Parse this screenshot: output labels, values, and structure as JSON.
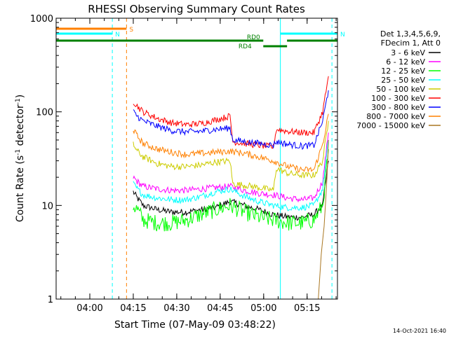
{
  "chart_data": {
    "type": "line",
    "title": "RHESSI Observing Summary Count Rates",
    "xlabel": "Start Time (07-May-09 03:48:22)",
    "ylabel": "Count Rate (s",
    "ylabel_sup": "-1",
    "ylabel_tail": " detector",
    "ylabel_close": ")",
    "yscale": "log",
    "ylim": [
      1,
      1000
    ],
    "xlim": [
      "03:48:22",
      "05:25:30"
    ],
    "x_unit": "minutes after 03:48:22",
    "xlim_minutes": [
      0,
      97.1
    ],
    "yticks": [
      {
        "value": 1,
        "label": "1"
      },
      {
        "value": 10,
        "label": "10"
      },
      {
        "value": 100,
        "label": "100"
      },
      {
        "value": 1000,
        "label": "1000"
      }
    ],
    "xticks": [
      {
        "minutes": 11.63,
        "label": "04:00"
      },
      {
        "minutes": 26.63,
        "label": "04:15"
      },
      {
        "minutes": 41.63,
        "label": "04:30"
      },
      {
        "minutes": 56.63,
        "label": "04:45"
      },
      {
        "minutes": 71.63,
        "label": "05:00"
      },
      {
        "minutes": 86.63,
        "label": "05:15"
      }
    ],
    "legend": {
      "position": "right",
      "header": [
        "Det 1,3,4,5,6,9,",
        "FDecim 1, Att 0"
      ]
    },
    "series": [
      {
        "name": "3 - 6 keV",
        "color": "#000000",
        "values": [
          [
            26.6,
            14
          ],
          [
            28,
            12
          ],
          [
            30,
            10
          ],
          [
            35,
            9
          ],
          [
            40,
            8.5
          ],
          [
            45,
            8.5
          ],
          [
            50,
            9
          ],
          [
            55,
            9.5
          ],
          [
            60,
            11
          ],
          [
            65,
            10
          ],
          [
            70,
            9
          ],
          [
            75,
            8
          ],
          [
            80,
            7.5
          ],
          [
            85,
            7.5
          ],
          [
            89,
            8
          ],
          [
            92,
            10
          ],
          [
            94,
            30
          ]
        ]
      },
      {
        "name": "6 - 12 keV",
        "color": "#ff00ff",
        "values": [
          [
            26.6,
            20
          ],
          [
            28,
            18
          ],
          [
            30,
            16
          ],
          [
            35,
            15
          ],
          [
            40,
            14.5
          ],
          [
            45,
            14.5
          ],
          [
            50,
            15
          ],
          [
            55,
            15.5
          ],
          [
            60,
            16
          ],
          [
            65,
            14.5
          ],
          [
            70,
            13.5
          ],
          [
            75,
            13
          ],
          [
            80,
            12
          ],
          [
            85,
            11.5
          ],
          [
            89,
            12
          ],
          [
            92,
            18
          ],
          [
            94,
            60
          ]
        ]
      },
      {
        "name": "12 - 25 keV",
        "color": "#00ff00",
        "values": [
          [
            26.6,
            10
          ],
          [
            28,
            9
          ],
          [
            30,
            7
          ],
          [
            35,
            6.5
          ],
          [
            40,
            6.5
          ],
          [
            45,
            7
          ],
          [
            50,
            8
          ],
          [
            55,
            9
          ],
          [
            60,
            10
          ],
          [
            65,
            8.5
          ],
          [
            70,
            7.5
          ],
          [
            75,
            7
          ],
          [
            80,
            6.5
          ],
          [
            85,
            6.5
          ],
          [
            89,
            7
          ],
          [
            92,
            10
          ],
          [
            94,
            40
          ]
        ]
      },
      {
        "name": "25 - 50 keV",
        "color": "#00ffff",
        "values": [
          [
            26.6,
            17
          ],
          [
            28,
            15
          ],
          [
            30,
            13
          ],
          [
            35,
            12
          ],
          [
            40,
            11.5
          ],
          [
            45,
            11.5
          ],
          [
            50,
            12.5
          ],
          [
            55,
            14
          ],
          [
            60,
            15
          ],
          [
            65,
            12.5
          ],
          [
            70,
            11
          ],
          [
            75,
            10
          ],
          [
            80,
            9.5
          ],
          [
            85,
            9.5
          ],
          [
            89,
            10
          ],
          [
            92,
            15
          ],
          [
            94,
            50
          ]
        ]
      },
      {
        "name": "50 - 100 keV",
        "color": "#cccc00",
        "values": [
          [
            26.6,
            45
          ],
          [
            28,
            38
          ],
          [
            30,
            33
          ],
          [
            35,
            28
          ],
          [
            40,
            26
          ],
          [
            45,
            26
          ],
          [
            50,
            27
          ],
          [
            55,
            29
          ],
          [
            60,
            30
          ],
          [
            61,
            17
          ],
          [
            65,
            16.5
          ],
          [
            70,
            15.5
          ],
          [
            75,
            14.5
          ],
          [
            76,
            25
          ],
          [
            80,
            22
          ],
          [
            85,
            21
          ],
          [
            89,
            21
          ],
          [
            92,
            30
          ],
          [
            94,
            80
          ]
        ]
      },
      {
        "name": "100 - 300 keV",
        "color": "#ff0000",
        "values": [
          [
            26.6,
            130
          ],
          [
            28,
            115
          ],
          [
            30,
            100
          ],
          [
            35,
            85
          ],
          [
            40,
            76
          ],
          [
            45,
            73
          ],
          [
            50,
            75
          ],
          [
            55,
            82
          ],
          [
            60,
            90
          ],
          [
            61,
            48
          ],
          [
            65,
            46
          ],
          [
            70,
            44
          ],
          [
            75,
            42
          ],
          [
            76,
            65
          ],
          [
            80,
            62
          ],
          [
            85,
            60
          ],
          [
            89,
            60
          ],
          [
            92,
            100
          ],
          [
            94,
            240
          ]
        ]
      },
      {
        "name": "300 - 800 keV",
        "color": "#0000ff",
        "values": [
          [
            26.6,
            100
          ],
          [
            28,
            90
          ],
          [
            30,
            80
          ],
          [
            35,
            70
          ],
          [
            40,
            63
          ],
          [
            45,
            61
          ],
          [
            50,
            62
          ],
          [
            55,
            65
          ],
          [
            60,
            67
          ],
          [
            61,
            50
          ],
          [
            65,
            48
          ],
          [
            70,
            46
          ],
          [
            75,
            44
          ],
          [
            76,
            48
          ],
          [
            80,
            45
          ],
          [
            85,
            43
          ],
          [
            89,
            44
          ],
          [
            92,
            80
          ],
          [
            94,
            170
          ]
        ]
      },
      {
        "name": "800 - 7000 keV",
        "color": "#ff8000",
        "values": [
          [
            26.6,
            65
          ],
          [
            28,
            55
          ],
          [
            30,
            46
          ],
          [
            35,
            40
          ],
          [
            40,
            37
          ],
          [
            45,
            35
          ],
          [
            50,
            36
          ],
          [
            55,
            37
          ],
          [
            60,
            38
          ],
          [
            65,
            36
          ],
          [
            70,
            33
          ],
          [
            75,
            30
          ],
          [
            80,
            26
          ],
          [
            85,
            24
          ],
          [
            89,
            24
          ],
          [
            92,
            45
          ],
          [
            94,
            95
          ]
        ]
      },
      {
        "name": "7000 - 15000 keV",
        "color": "#aa7722",
        "values": [
          [
            90.5,
            1
          ],
          [
            91.5,
            3
          ],
          [
            92.5,
            6
          ],
          [
            93.5,
            20
          ],
          [
            94,
            50
          ]
        ]
      }
    ],
    "annotations": {
      "attenuator_state": [
        {
          "label": "S",
          "color": "#ff8000",
          "from": 0,
          "to": 24.3
        },
        {
          "label": "N",
          "color": "#00ffff",
          "from": 0,
          "to": 19.4
        },
        {
          "label": "N",
          "color": "#00ffff",
          "from": 77.4,
          "to": 97.1
        }
      ],
      "data_bars": [
        {
          "label": "RD0",
          "color": "#008000",
          "from": 0,
          "to": 71.5
        },
        {
          "label": "RD4",
          "color": "#008000",
          "from": 71.5,
          "to": 79.7
        },
        {
          "label": "",
          "color": "#008000",
          "from": 79.7,
          "to": 97.1
        }
      ],
      "vlines": [
        {
          "minutes": 0,
          "color": "#00ffff",
          "dash": false
        },
        {
          "minutes": 19.4,
          "color": "#00ffff",
          "dash": true
        },
        {
          "minutes": 24.3,
          "color": "#ff8000",
          "dash": true
        },
        {
          "minutes": 77.4,
          "color": "#00ffff",
          "dash": false
        },
        {
          "minutes": 95.2,
          "color": "#00ffff",
          "dash": true
        }
      ]
    },
    "footer": "14-Oct-2021 16:40"
  }
}
